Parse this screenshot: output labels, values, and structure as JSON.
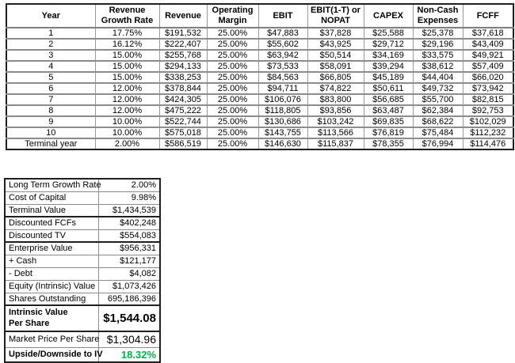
{
  "colors": {
    "upside_positive": "#00B050"
  },
  "dcf_table": {
    "columns": [
      "Year",
      "Revenue Growth Rate",
      "Revenue",
      "Operating Margin",
      "EBIT",
      "EBIT(1-T) or NOPAT",
      "CAPEX",
      "Non-Cash Expenses",
      "FCFF"
    ],
    "rows": [
      [
        "1",
        "17.75%",
        "$191,532",
        "25.00%",
        "$47,883",
        "$37,828",
        "$25,588",
        "$25,378",
        "$37,618"
      ],
      [
        "2",
        "16.12%",
        "$222,407",
        "25.00%",
        "$55,602",
        "$43,925",
        "$29,712",
        "$29,196",
        "$43,409"
      ],
      [
        "3",
        "15.00%",
        "$255,768",
        "25.00%",
        "$63,942",
        "$50,514",
        "$34,169",
        "$33,575",
        "$49,921"
      ],
      [
        "4",
        "15.00%",
        "$294,133",
        "25.00%",
        "$73,533",
        "$58,091",
        "$39,294",
        "$38,612",
        "$57,409"
      ],
      [
        "5",
        "15.00%",
        "$338,253",
        "25.00%",
        "$84,563",
        "$66,805",
        "$45,189",
        "$44,404",
        "$66,020"
      ],
      [
        "6",
        "12.00%",
        "$378,844",
        "25.00%",
        "$94,711",
        "$74,822",
        "$50,611",
        "$49,732",
        "$73,942"
      ],
      [
        "7",
        "12.00%",
        "$424,305",
        "25.00%",
        "$106,076",
        "$83,800",
        "$56,685",
        "$55,700",
        "$82,815"
      ],
      [
        "8",
        "12.00%",
        "$475,222",
        "25.00%",
        "$118,805",
        "$93,856",
        "$63,487",
        "$62,384",
        "$92,753"
      ],
      [
        "9",
        "10.00%",
        "$522,744",
        "25.00%",
        "$130,686",
        "$103,242",
        "$69,835",
        "$68,622",
        "$102,029"
      ],
      [
        "10",
        "10.00%",
        "$575,018",
        "25.00%",
        "$143,755",
        "$113,566",
        "$76,819",
        "$75,484",
        "$112,232"
      ],
      [
        "Terminal year",
        "2.00%",
        "$586,519",
        "25.00%",
        "$146,630",
        "$115,837",
        "$78,355",
        "$76,994",
        "$114,476"
      ]
    ]
  },
  "valuation_table": {
    "rows": [
      {
        "label": "Long Term Growth Rate",
        "value": "2.00%"
      },
      {
        "label": "Cost of Capital",
        "value": "9.98%"
      },
      {
        "label": "Terminal Value",
        "value": "$1,434,539",
        "divider_below": true
      },
      {
        "label": "Discounted FCFs",
        "value": "$402,248"
      },
      {
        "label": "Discounted TV",
        "value": "$554,083",
        "divider_below": true
      },
      {
        "label": "Enterprise Value",
        "value": "$956,331"
      },
      {
        "label": "+ Cash",
        "value": "$121,177"
      },
      {
        "label": "- Debt",
        "value": "$4,082"
      },
      {
        "label": "Equity (Intrinsic) Value",
        "value": "$1,073,426"
      },
      {
        "label": "Shares Outstanding",
        "value": "695,186,396",
        "divider_below": true
      },
      {
        "label": "Intrinsic Value\nPer Share",
        "value": "$1,544.08",
        "style": "intrinsic",
        "divider_below": true
      },
      {
        "label": "Market Price Per Share",
        "value": "$1,304.96",
        "style": "market"
      },
      {
        "label": "Upside/Downside to IV",
        "value": "18.32%",
        "style": "upside",
        "value_color": "#00B050"
      }
    ]
  }
}
